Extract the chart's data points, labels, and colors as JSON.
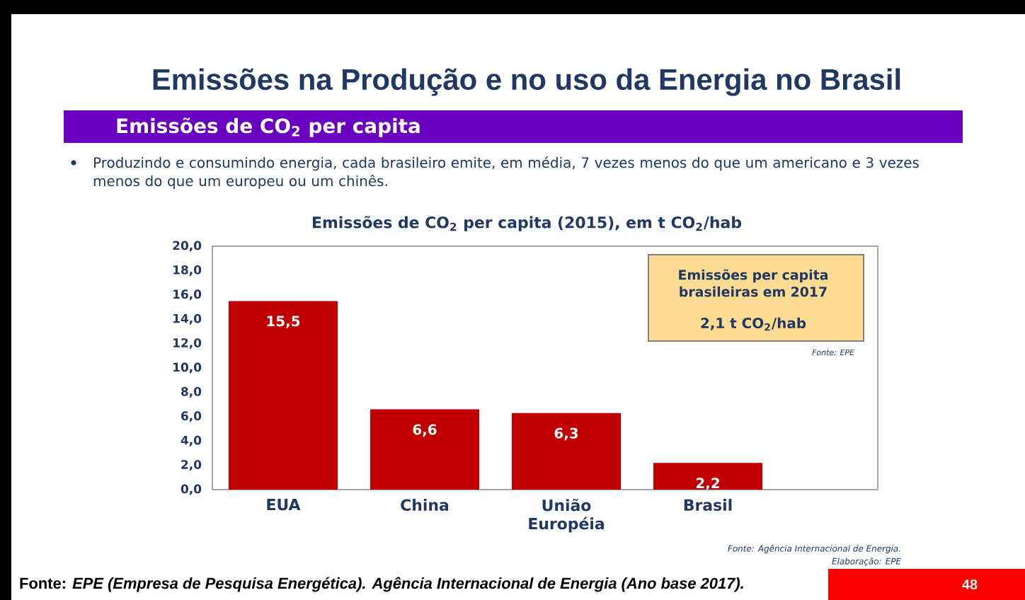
{
  "chart_data": {
    "type": "bar",
    "title": "Emissões na Produção e no uso da Energia no Brasil",
    "subtitle": "Emissões de CO$_{2}$ per capita",
    "annotations": [
      "Produzindo e consumindo energia, cada brasileiro emite, em média, 7 vezes menos do que um americano e 3 vezes menos do que um europeu ou um chinês.",
      "Emissões de CO$_{2}$ per capita (2015), em t CO$_{2}$/hab",
      "Emissões per capita brasileiras em **2017**",
      "**2,1** t CO$_{2}$/hab",
      "Fonte: EPE",
      "Fonte: Agência Internacional de Energia.",
      "Elaboração: EPE",
      "Fonte: *EPE (Empresa de Pesquisa Energética). Agência Internacional de Energia (Ano base 2017).*",
      "48"
    ],
    "categories": [
      "EUA",
      "China",
      "União Européia",
      "Brasil"
    ],
    "values": [
      15.5,
      6.6,
      6.3,
      2.2
    ],
    "value_labels": [
      "15,5",
      "6,6",
      "6,3",
      "2,2"
    ],
    "color": "#c00000",
    "ylim": [
      0,
      20
    ],
    "yticks": [
      {
        "value": 0,
        "label": "0,0"
      },
      {
        "value": 2,
        "label": "2,0"
      },
      {
        "value": 4,
        "label": "4,0"
      },
      {
        "value": 6,
        "label": "6,0"
      },
      {
        "value": 8,
        "label": "8,0"
      },
      {
        "value": 10,
        "label": "10,0"
      },
      {
        "value": 12,
        "label": "12,0"
      },
      {
        "value": 14,
        "label": "14,0"
      },
      {
        "value": 16,
        "label": "16,0"
      },
      {
        "value": 18,
        "label": "18,0"
      },
      {
        "value": 20,
        "label": "20,0"
      }
    ],
    "grid": false
  }
}
